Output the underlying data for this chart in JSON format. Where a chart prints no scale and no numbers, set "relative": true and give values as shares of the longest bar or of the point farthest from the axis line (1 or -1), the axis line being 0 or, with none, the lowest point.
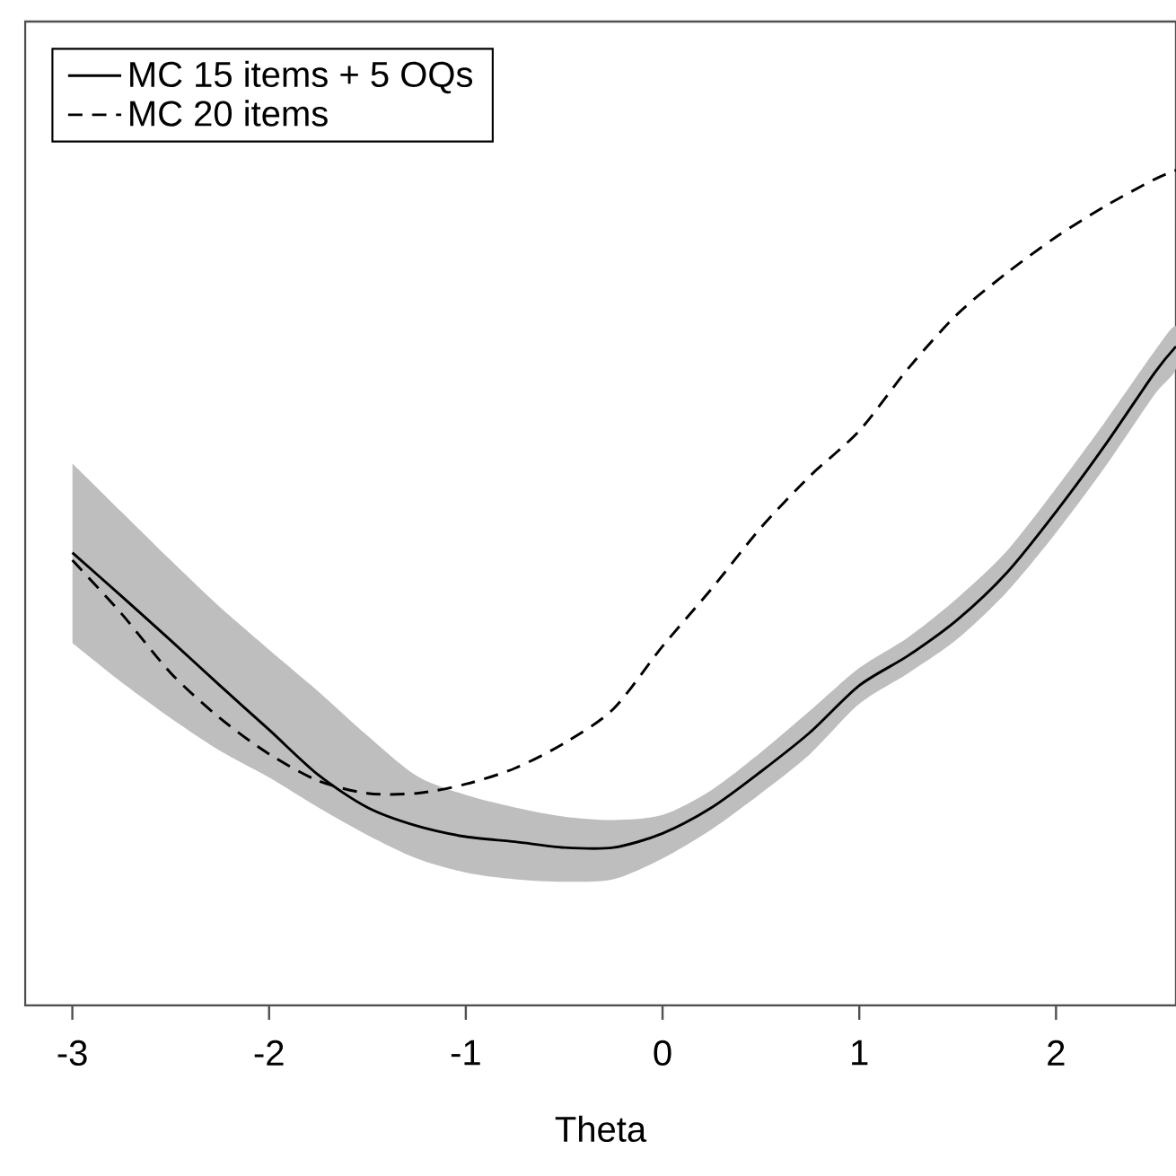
{
  "chart_data": {
    "type": "line",
    "relative": true,
    "xlabel": "Theta",
    "x": [
      -3,
      -2.75,
      -2.5,
      -2.25,
      -2,
      -1.75,
      -1.5,
      -1.25,
      -1,
      -0.75,
      -0.5,
      -0.25,
      0,
      0.25,
      0.5,
      0.75,
      1,
      1.25,
      1.5,
      1.75,
      2,
      2.25,
      2.5,
      2.61
    ],
    "xlim": [
      -3.24,
      2.61
    ],
    "xticks": [
      -3,
      -2,
      -1,
      0,
      1,
      2
    ],
    "series": [
      {
        "name": "MC 15 items + 5 OQs",
        "color": "#000000",
        "line_style": "solid",
        "values": [
          0.542,
          0.49,
          0.437,
          0.383,
          0.33,
          0.276,
          0.237,
          0.215,
          0.202,
          0.196,
          0.189,
          0.189,
          0.206,
          0.237,
          0.28,
          0.327,
          0.383,
          0.419,
          0.462,
          0.518,
          0.591,
          0.671,
          0.757,
          0.789
        ],
        "upper": [
          0.649,
          0.591,
          0.533,
          0.477,
          0.426,
          0.376,
          0.323,
          0.275,
          0.252,
          0.237,
          0.226,
          0.222,
          0.228,
          0.258,
          0.303,
          0.353,
          0.404,
          0.441,
          0.488,
          0.544,
          0.619,
          0.699,
          0.783,
          0.813
        ],
        "lower": [
          0.434,
          0.387,
          0.344,
          0.305,
          0.273,
          0.237,
          0.204,
          0.176,
          0.159,
          0.151,
          0.148,
          0.151,
          0.176,
          0.211,
          0.254,
          0.301,
          0.361,
          0.398,
          0.439,
          0.495,
          0.566,
          0.645,
          0.731,
          0.763
        ]
      },
      {
        "name": "MC 20 items",
        "color": "#000000",
        "line_style": "dashed",
        "values": [
          0.533,
          0.469,
          0.398,
          0.344,
          0.301,
          0.269,
          0.254,
          0.254,
          0.265,
          0.284,
          0.314,
          0.355,
          0.43,
          0.499,
          0.572,
          0.634,
          0.688,
          0.763,
          0.828,
          0.877,
          0.92,
          0.957,
          0.989,
          1.0
        ]
      }
    ],
    "legend": "top left",
    "grid": false,
    "marker": "none"
  }
}
